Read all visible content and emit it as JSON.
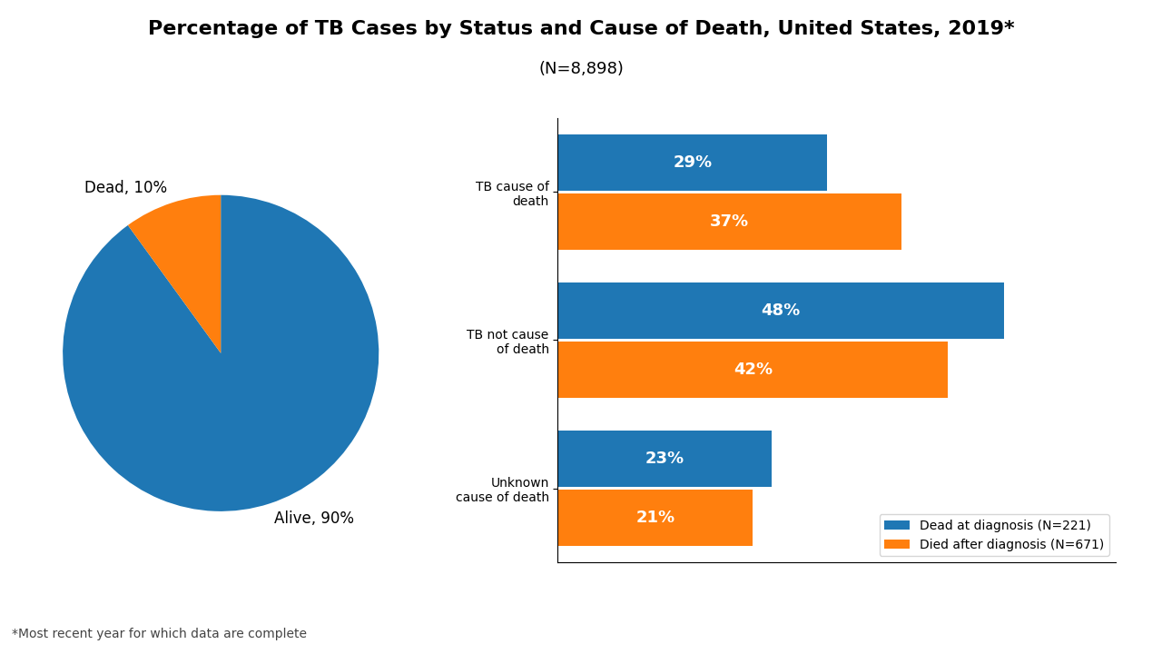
{
  "title": "Percentage of TB Cases by Status and Cause of Death, United States, 2019*",
  "subtitle": "(N=8,898)",
  "annotations": [
    "*Most recent year for which data are complete"
  ],
  "chart_data": [
    {
      "type": "pie",
      "categories": [
        "Alive, 90%",
        "Dead, 10%"
      ],
      "values": [
        90,
        10
      ]
    },
    {
      "type": "bar",
      "orientation": "horizontal",
      "categories": [
        "TB cause of\ndeath",
        "TB not cause\nof death",
        "Unknown\ncause of death"
      ],
      "series": [
        {
          "name": "Dead at diagnosis (N=221)",
          "values": [
            29,
            48,
            23
          ],
          "value_labels": [
            "29%",
            "48%",
            "23%"
          ]
        },
        {
          "name": "Died after diagnosis (N=671)",
          "values": [
            37,
            42,
            21
          ],
          "value_labels": [
            "37%",
            "42%",
            "21%"
          ]
        }
      ],
      "xlim": [
        0,
        60
      ],
      "data_labels": true,
      "tick_labels": "y",
      "legend": "lower right"
    }
  ]
}
